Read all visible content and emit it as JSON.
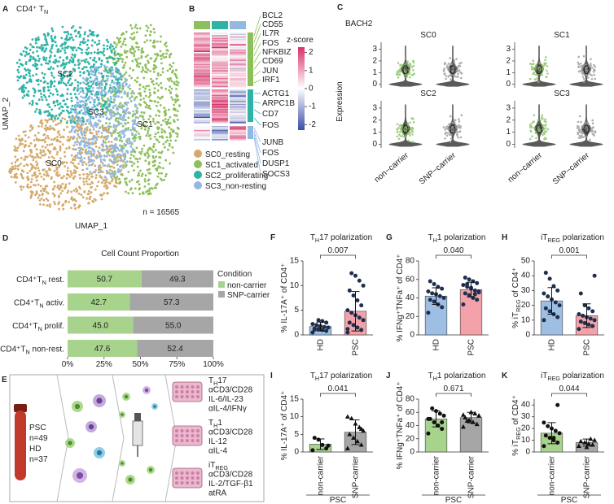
{
  "chart_data": [
    {
      "type": "scatter",
      "panel_label": "A",
      "title": [
        {
          "t": "CD4⁺ T"
        },
        {
          "t": "N",
          "s": "sub"
        }
      ],
      "x_label": "UMAP_1",
      "y_label": "UMAP_2",
      "annotation": "n = 16565",
      "clusters": [
        {
          "name": "SC0",
          "color": "#d4ab6a"
        },
        {
          "name": "SC1",
          "color": "#8dbf5b"
        },
        {
          "name": "SC2",
          "color": "#2fb3a6"
        },
        {
          "name": "SC3",
          "color": "#93b9e3"
        }
      ]
    },
    {
      "type": "heatmap",
      "panel_label": "B",
      "legend_title": "z-score",
      "zlim": [
        -2.3,
        2.3
      ],
      "zticks": [
        2,
        1,
        0,
        -1,
        -2
      ],
      "gene_groups": [
        {
          "color": "#8dbf5b",
          "genes": [
            "BCL2",
            "CD55",
            "IL7R",
            "FOS",
            "NFKBIZ",
            "CD69",
            "JUN",
            "IRF1"
          ]
        },
        {
          "color": "#2fb3a6",
          "genes": [
            "ACTG1",
            "ARPC1B",
            "CD7",
            "FOS"
          ]
        },
        {
          "color": "#93b9e3",
          "genes": [
            "JUNB",
            "FOS",
            "DUSP1",
            "SOCS3"
          ]
        }
      ],
      "legend": [
        {
          "name": "SC0_resting",
          "color": "#d4ab6a"
        },
        {
          "name": "SC1_activated",
          "color": "#8dbf5b"
        },
        {
          "name": "SC2_proliferating",
          "color": "#2fb3a6"
        },
        {
          "name": "SC3_non-resting",
          "color": "#93b9e3"
        }
      ]
    },
    {
      "type": "violin",
      "panel_label": "C",
      "title": "BACH2",
      "y_label": "Expression",
      "ylim": [
        -0.3,
        3.6
      ],
      "yticks": [
        0,
        1,
        2,
        3
      ],
      "panels": [
        "SC0",
        "SC1",
        "SC2",
        "SC3"
      ],
      "categories": [
        "non−carrier",
        "SNP−carrier"
      ],
      "colors": [
        "#8cc464",
        "#9b9b9b"
      ]
    },
    {
      "type": "bar",
      "orientation": "horizontal",
      "stacked": true,
      "panel_label": "D",
      "title": "Cell Count Proportion",
      "legend_title": "Condition",
      "categories": [
        [
          {
            "t": "CD4⁺T"
          },
          {
            "t": "N",
            "s": "sub"
          },
          {
            "t": " rest."
          }
        ],
        [
          {
            "t": "CD4⁺T"
          },
          {
            "t": "N",
            "s": "sub"
          },
          {
            "t": " activ."
          }
        ],
        [
          {
            "t": "CD4⁺T"
          },
          {
            "t": "N",
            "s": "sub"
          },
          {
            "t": " prolif."
          }
        ],
        [
          {
            "t": "CD4⁺T"
          },
          {
            "t": "N",
            "s": "sub"
          },
          {
            "t": " non-rest."
          }
        ]
      ],
      "series": [
        {
          "name": "non-carrier",
          "color": "#a8d38c",
          "values": [
            50.7,
            42.7,
            45.0,
            47.6
          ],
          "value_labels": [
            "50.7",
            "42.7",
            "45.0",
            "47.6"
          ]
        },
        {
          "name": "SNP-carrier",
          "color": "#a6a6a6",
          "values": [
            49.3,
            57.3,
            55.0,
            52.4
          ],
          "value_labels": [
            "49.3",
            "57.3",
            "55.0",
            "52.4"
          ]
        }
      ],
      "xlim": [
        0,
        100
      ],
      "xticks": [
        {
          "value": 0,
          "label": "0%"
        },
        {
          "value": 25,
          "label": "25%"
        },
        {
          "value": 50,
          "label": "50%"
        },
        {
          "value": 75,
          "label": "75%"
        },
        {
          "value": 100,
          "label": "100%"
        }
      ]
    },
    {
      "type": "bar",
      "panel_label": "F",
      "title": [
        {
          "t": "T"
        },
        {
          "t": "H",
          "s": "sub"
        },
        {
          "t": "17 polarization"
        }
      ],
      "y_label": "% IL-17A⁺ of CD4⁺",
      "ylim": [
        0,
        15
      ],
      "yticks": [
        0,
        5,
        10,
        15
      ],
      "categories": [
        "HD",
        "PSC"
      ],
      "values": [
        1.7,
        4.8
      ],
      "errors": [
        0.9,
        4
      ],
      "colors": [
        "#9ebfe3",
        "#f2a2a8"
      ],
      "markers": [
        "circle",
        "circle"
      ],
      "point_color": "#1f2f4d",
      "points": [
        [
          0.5,
          0.8,
          1.0,
          1.2,
          1.3,
          1.5,
          1.6,
          1.8,
          2.0,
          2.2,
          2.5,
          2.8,
          3.0,
          1.1
        ],
        [
          0.5,
          1.0,
          1.5,
          2.0,
          2.5,
          3.0,
          3.5,
          4.0,
          4.5,
          5.0,
          6.0,
          7.0,
          8.0,
          9.0,
          10.0,
          11.0,
          12.0,
          12.5,
          1.2
        ]
      ],
      "annotation": "0.007"
    },
    {
      "type": "bar",
      "panel_label": "G",
      "title": [
        {
          "t": "T"
        },
        {
          "t": "H",
          "s": "sub"
        },
        {
          "t": "1 polarization"
        }
      ],
      "y_label": "% IFNg⁺TNFa⁺ of CD4⁺",
      "ylim": [
        0,
        80
      ],
      "yticks": [
        0,
        20,
        40,
        60,
        80
      ],
      "categories": [
        "HD",
        "PSC"
      ],
      "values": [
        42,
        49
      ],
      "errors": [
        9,
        8
      ],
      "colors": [
        "#9ebfe3",
        "#f2a2a8"
      ],
      "markers": [
        "circle",
        "circle"
      ],
      "point_color": "#1f2f4d",
      "points": [
        [
          24,
          30,
          33,
          36,
          38,
          40,
          42,
          44,
          45,
          47,
          50,
          52,
          55,
          58
        ],
        [
          33,
          38,
          40,
          43,
          45,
          47,
          48,
          50,
          52,
          54,
          56,
          58,
          60,
          62,
          46,
          44,
          51,
          55
        ]
      ],
      "annotation": "0.040"
    },
    {
      "type": "bar",
      "panel_label": "H",
      "title": [
        {
          "t": "iT"
        },
        {
          "t": "REG",
          "s": "sub"
        },
        {
          "t": " polarization"
        }
      ],
      "y_label": [
        {
          "t": "% iT"
        },
        {
          "t": "REG",
          "s": "sub"
        },
        {
          "t": " of CD4⁺"
        }
      ],
      "ylim": [
        0,
        50
      ],
      "yticks": [
        0,
        10,
        20,
        30,
        40,
        50
      ],
      "categories": [
        "HD",
        "PSC"
      ],
      "values": [
        23,
        13
      ],
      "errors": [
        9,
        8
      ],
      "colors": [
        "#9ebfe3",
        "#f2a2a8"
      ],
      "markers": [
        "circle",
        "circle"
      ],
      "point_color": "#1f2f4d",
      "points": [
        [
          10,
          12,
          14,
          16,
          18,
          20,
          22,
          24,
          26,
          28,
          30,
          33,
          38,
          42
        ],
        [
          4,
          6,
          7,
          8,
          9,
          10,
          11,
          12,
          13,
          14,
          16,
          18,
          20,
          28,
          40
        ]
      ],
      "annotation": "0.001"
    },
    {
      "type": "bar",
      "panel_label": "I",
      "title": [
        {
          "t": "T"
        },
        {
          "t": "H",
          "s": "sub"
        },
        {
          "t": "17 polarization"
        }
      ],
      "y_label": "% IL-17A⁺ of CD4⁺",
      "ylim": [
        0,
        15
      ],
      "yticks": [
        0,
        5,
        10,
        15
      ],
      "categories": [
        "non-carrier",
        "SNP-carrier"
      ],
      "values": [
        2.2,
        5.6
      ],
      "errors": [
        1.5,
        3.5
      ],
      "colors": [
        "#a8d38c",
        "#a6a6a6"
      ],
      "markers": [
        "circle",
        "triangle"
      ],
      "point_color": "#111111",
      "points": [
        [
          0.5,
          1.0,
          2.0,
          3.5,
          4.0,
          1.8
        ],
        [
          1,
          2,
          3,
          4,
          5,
          6,
          7,
          8,
          9.5,
          10,
          6.5
        ]
      ],
      "annotation": "0.041",
      "group_label": "PSC"
    },
    {
      "type": "bar",
      "panel_label": "J",
      "title": [
        {
          "t": "T"
        },
        {
          "t": "H",
          "s": "sub"
        },
        {
          "t": "1 polarization"
        }
      ],
      "y_label": "% IFNg⁺TNFa⁺ of CD4⁺",
      "ylim": [
        0,
        80
      ],
      "yticks": [
        0,
        20,
        40,
        60,
        80
      ],
      "categories": [
        "non-carrier",
        "SNP-carrier"
      ],
      "values": [
        50,
        52
      ],
      "errors": [
        12,
        8
      ],
      "colors": [
        "#a8d38c",
        "#a6a6a6"
      ],
      "markers": [
        "circle",
        "triangle"
      ],
      "point_color": "#111111",
      "points": [
        [
          28,
          35,
          40,
          45,
          50,
          55,
          58,
          62,
          66,
          50,
          45
        ],
        [
          38,
          42,
          45,
          48,
          52,
          55,
          58,
          60,
          47,
          56
        ]
      ],
      "annotation": "0.671",
      "group_label": "PSC"
    },
    {
      "type": "bar",
      "panel_label": "K",
      "title": [
        {
          "t": "iT"
        },
        {
          "t": "REG",
          "s": "sub"
        },
        {
          "t": " polarization"
        }
      ],
      "y_label": [
        {
          "t": "% iT"
        },
        {
          "t": "REG",
          "s": "sub"
        },
        {
          "t": " of CD4⁺"
        }
      ],
      "ylim": [
        0,
        45
      ],
      "yticks": [
        0,
        10,
        20,
        30,
        40
      ],
      "categories": [
        "non-carrier",
        "SNP-carrier"
      ],
      "values": [
        16,
        8
      ],
      "errors": [
        9,
        3
      ],
      "colors": [
        "#a8d38c",
        "#a6a6a6"
      ],
      "markers": [
        "circle",
        "triangle"
      ],
      "point_color": "#111111",
      "points": [
        [
          5,
          8,
          10,
          12,
          14,
          16,
          18,
          20,
          22,
          25,
          40,
          12
        ],
        [
          5,
          6,
          7,
          8,
          9,
          10,
          11,
          4
        ]
      ],
      "annotation": "0.044",
      "group_label": "PSC"
    }
  ],
  "panel_e": {
    "panel_label": "E",
    "cohorts": [
      {
        "name": "PSC",
        "n": "n=49"
      },
      {
        "name": "HD",
        "n": "n=37"
      }
    ],
    "conditions": [
      {
        "name": [
          {
            "t": "T"
          },
          {
            "t": "H",
            "s": "sub"
          },
          {
            "t": "17"
          }
        ],
        "lines": [
          "αCD3/CD28",
          "IL-6/IL-23",
          "αIL-4/IFNγ"
        ]
      },
      {
        "name": [
          {
            "t": "T"
          },
          {
            "t": "H",
            "s": "sub"
          },
          {
            "t": "1"
          }
        ],
        "lines": [
          "αCD3/CD28",
          "IL-12",
          "αIL-4"
        ]
      },
      {
        "name": [
          {
            "t": "iT"
          },
          {
            "t": "REG",
            "s": "sub"
          }
        ],
        "lines": [
          "αCD3/CD28",
          "IL-2/TGF-β1",
          "atRA"
        ]
      }
    ]
  }
}
